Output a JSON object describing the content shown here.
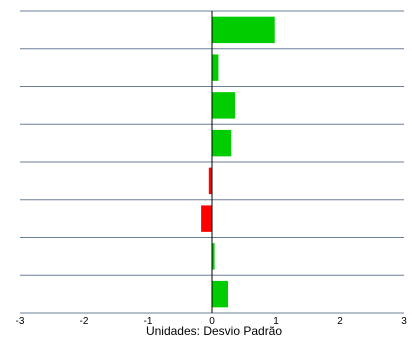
{
  "chart_data": {
    "type": "bar",
    "orientation": "horizontal",
    "title": "",
    "xlabel": "Unidades: Desvio Padrão",
    "ylabel": "",
    "xlim": [
      -3,
      3
    ],
    "xticks": [
      -3,
      -2,
      -1,
      0,
      1,
      2,
      3
    ],
    "tick_labels": [
      "-3",
      "-2",
      "-1",
      "0",
      "1",
      "2",
      "3"
    ],
    "grid": "horizontal row separators",
    "values": [
      0.98,
      0.1,
      0.36,
      0.3,
      -0.05,
      -0.17,
      0.04,
      0.25
    ],
    "colors": {
      "positive": "#00cc00",
      "negative": "#ff0000",
      "grid": "#6b7f99",
      "axis": "#000000"
    }
  }
}
